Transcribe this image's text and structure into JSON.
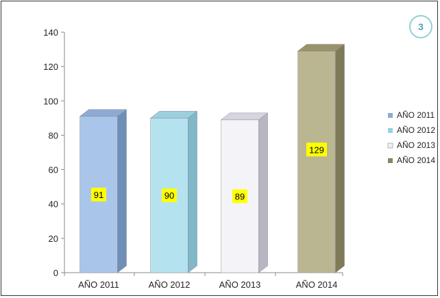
{
  "chart_data": {
    "type": "bar",
    "style": "3d-columns",
    "categories": [
      "AÑO 2011",
      "AÑO 2012",
      "AÑO 2013",
      "AÑO 2014"
    ],
    "values": [
      91,
      90,
      89,
      129
    ],
    "data_labels": [
      "91",
      "90",
      "89",
      "129"
    ],
    "ylim": [
      0,
      140
    ],
    "yticks": [
      0,
      20,
      40,
      60,
      80,
      100,
      120,
      140
    ],
    "legend": [
      "AÑO 2011",
      "AÑO 2012",
      "AÑO 2013",
      "AÑO 2014"
    ],
    "legend_position": "right",
    "grid": false,
    "colors": {
      "front": [
        "#a9c6ea",
        "#b5e2ef",
        "#f4f3f8",
        "#bbb692"
      ],
      "side": [
        "#6f8fb9",
        "#7fb8c8",
        "#b9b6c4",
        "#7f7a58"
      ],
      "top": [
        "#8eaad4",
        "#9ccfde",
        "#d6d4e0",
        "#99936d"
      ],
      "legend_swatch": [
        "#8eaad4",
        "#8fd3e4",
        "#f0f0f0",
        "#8a845c"
      ],
      "label_bg": "#ffff00"
    }
  },
  "badge": {
    "text": "3"
  }
}
